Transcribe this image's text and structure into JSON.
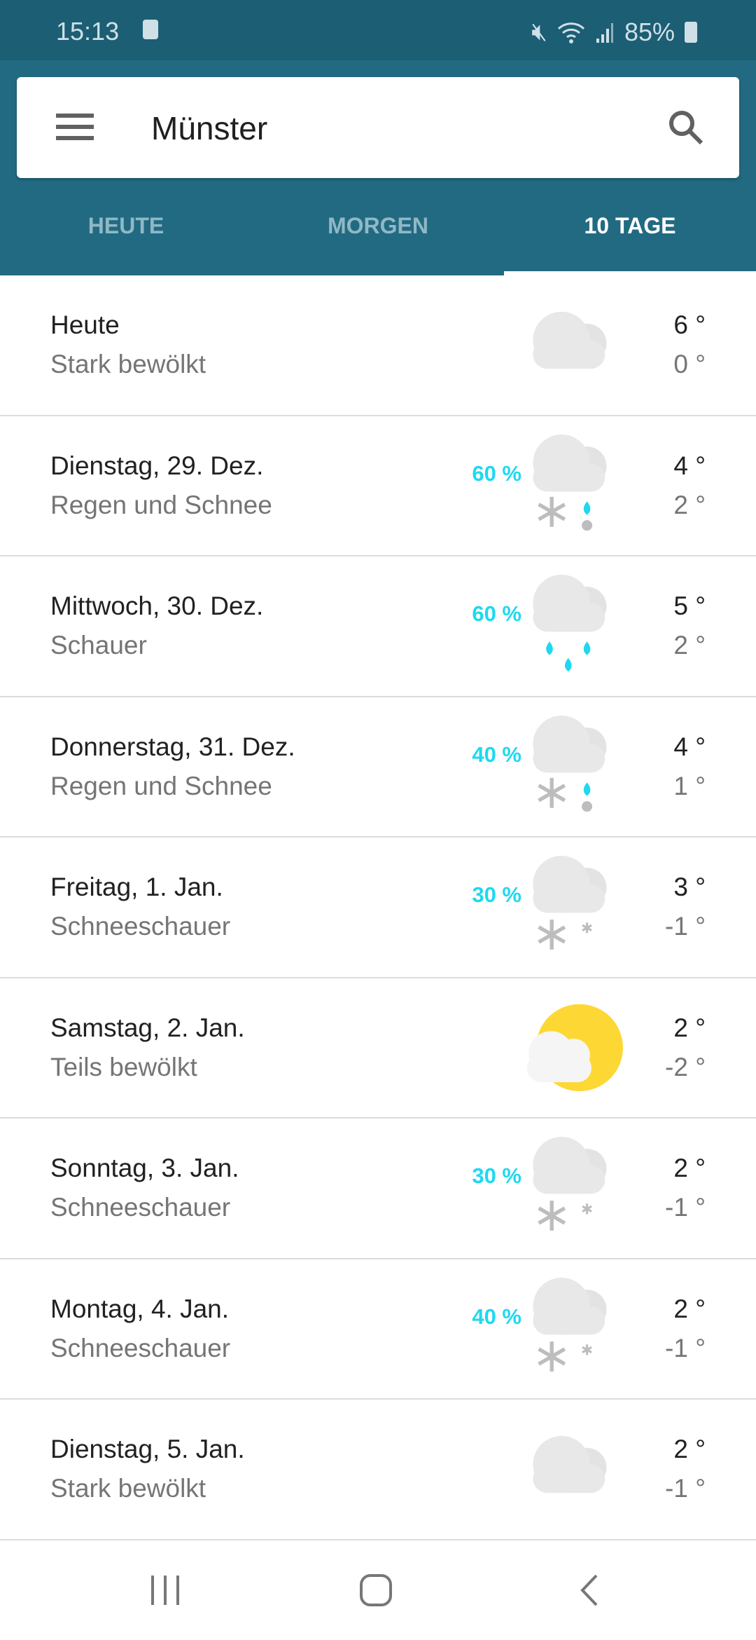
{
  "status_bar": {
    "time": "15:13",
    "battery": "85%"
  },
  "search": {
    "city": "Münster"
  },
  "tabs": [
    {
      "label": "HEUTE",
      "active": false
    },
    {
      "label": "MORGEN",
      "active": false
    },
    {
      "label": "10 TAGE",
      "active": true
    }
  ],
  "colors": {
    "appbar": "#226a82",
    "precip": "#1ed9ef",
    "sun": "#fdd835"
  },
  "forecast": [
    {
      "day": "Heute",
      "desc": "Stark bewölkt",
      "precip": "",
      "icon": "cloudy",
      "high": "6 °",
      "low": "0 °"
    },
    {
      "day": "Dienstag, 29. Dez.",
      "desc": "Regen und Schnee",
      "precip": "60 %",
      "icon": "rain-snow",
      "high": "4 °",
      "low": "2 °"
    },
    {
      "day": "Mittwoch, 30. Dez.",
      "desc": "Schauer",
      "precip": "60 %",
      "icon": "showers",
      "high": "5 °",
      "low": "2 °"
    },
    {
      "day": "Donnerstag, 31. Dez.",
      "desc": "Regen und Schnee",
      "precip": "40 %",
      "icon": "rain-snow",
      "high": "4 °",
      "low": "1 °"
    },
    {
      "day": "Freitag, 1. Jan.",
      "desc": "Schneeschauer",
      "precip": "30 %",
      "icon": "snow-showers",
      "high": "3 °",
      "low": "-1 °"
    },
    {
      "day": "Samstag, 2. Jan.",
      "desc": "Teils bewölkt",
      "precip": "",
      "icon": "partly-cloudy",
      "high": "2 °",
      "low": "-2 °"
    },
    {
      "day": "Sonntag, 3. Jan.",
      "desc": "Schneeschauer",
      "precip": "30 %",
      "icon": "snow-showers",
      "high": "2 °",
      "low": "-1 °"
    },
    {
      "day": "Montag, 4. Jan.",
      "desc": "Schneeschauer",
      "precip": "40 %",
      "icon": "snow-showers",
      "high": "2 °",
      "low": "-1 °"
    },
    {
      "day": "Dienstag, 5. Jan.",
      "desc": "Stark bewölkt",
      "precip": "",
      "icon": "cloudy",
      "high": "2 °",
      "low": "-1 °"
    }
  ]
}
